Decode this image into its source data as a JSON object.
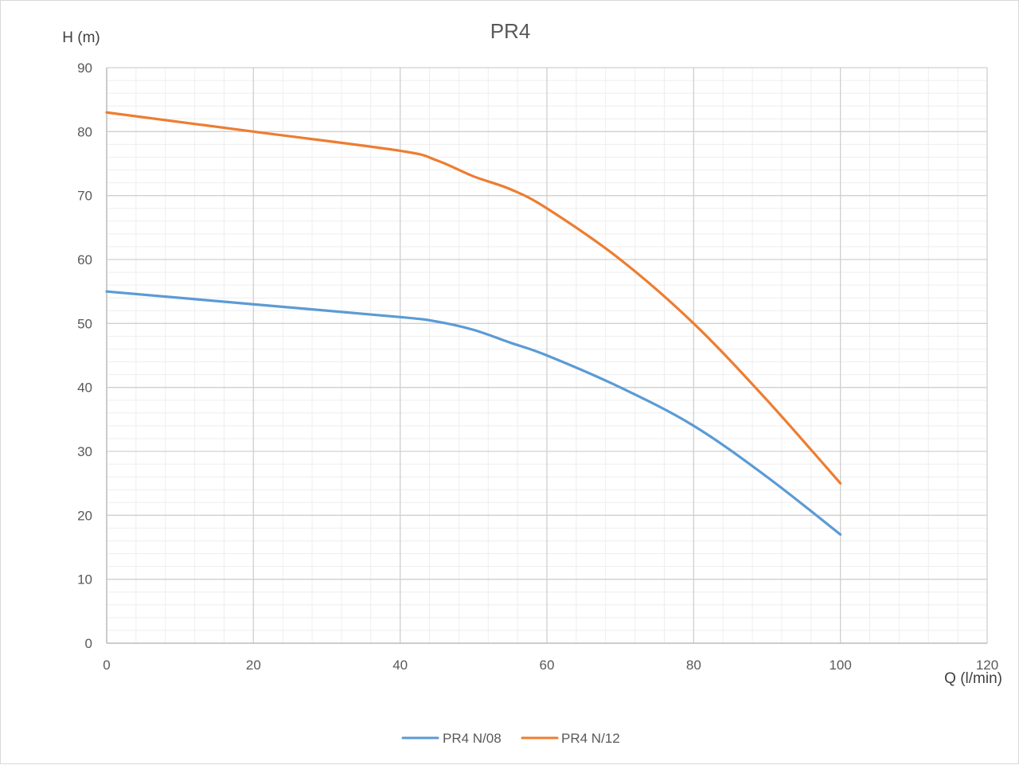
{
  "chart_data": {
    "type": "line",
    "title": "PR4",
    "xlabel": "Q (l/min)",
    "ylabel": "H (m)",
    "xlim": [
      0,
      120
    ],
    "ylim": [
      0,
      90
    ],
    "x_ticks": [
      0,
      20,
      40,
      60,
      80,
      100,
      120
    ],
    "y_ticks": [
      0,
      10,
      20,
      30,
      40,
      50,
      60,
      70,
      80,
      90
    ],
    "x_tick_labels": [
      "0",
      "20",
      "40",
      "60",
      "80",
      "100",
      "120"
    ],
    "y_tick_labels": [
      "0",
      "10",
      "20",
      "30",
      "40",
      "50",
      "60",
      "70",
      "80",
      "90"
    ],
    "grid": "major and minor",
    "legend_position": "bottom",
    "series": [
      {
        "name": "PR4 N/08",
        "color": "#5b9bd5",
        "points": [
          [
            0,
            55
          ],
          [
            20,
            53
          ],
          [
            40,
            51
          ],
          [
            45,
            50.3
          ],
          [
            50,
            49
          ],
          [
            55,
            47
          ],
          [
            60,
            45
          ],
          [
            70,
            40
          ],
          [
            80,
            34
          ],
          [
            90,
            26
          ],
          [
            100,
            17
          ]
        ]
      },
      {
        "name": "PR4 N/12",
        "color": "#ed7d31",
        "points": [
          [
            0,
            83
          ],
          [
            20,
            80
          ],
          [
            40,
            77
          ],
          [
            45,
            75.5
          ],
          [
            50,
            73
          ],
          [
            55,
            71
          ],
          [
            60,
            68
          ],
          [
            70,
            60
          ],
          [
            80,
            50
          ],
          [
            90,
            38
          ],
          [
            100,
            25
          ]
        ]
      }
    ]
  }
}
